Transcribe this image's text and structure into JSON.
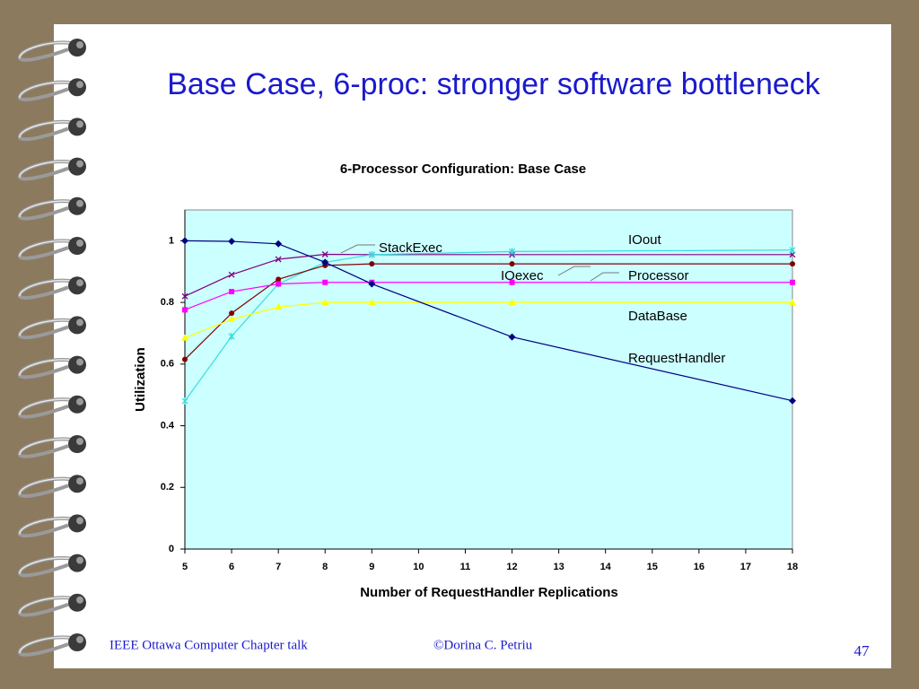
{
  "slide": {
    "title": "Base Case, 6-proc: stronger software bottleneck",
    "footer_left": "IEEE Ottawa Computer Chapter talk",
    "footer_center": "©Dorina C. Petriu",
    "page_number": "47"
  },
  "chart_data": {
    "type": "line",
    "title": "6-Processor Configuration: Base Case",
    "x_label": "Number of RequestHandler Replications",
    "y_label": "Utilization",
    "x": [
      5,
      6,
      7,
      8,
      9,
      12,
      18
    ],
    "xlim": [
      5,
      18
    ],
    "xticks": [
      5,
      6,
      7,
      8,
      9,
      10,
      11,
      12,
      13,
      14,
      15,
      16,
      17,
      18
    ],
    "ylim": [
      0,
      1.1
    ],
    "yticks": [
      0,
      0.2,
      0.4,
      0.6,
      0.8,
      1
    ],
    "series": [
      {
        "name": "StackExec",
        "color": "#800080",
        "marker": "x",
        "values": [
          0.82,
          0.89,
          0.94,
          0.956,
          0.955,
          0.955,
          0.955
        ]
      },
      {
        "name": "IOout",
        "color": "#33dddd",
        "marker": "star",
        "values": [
          0.48,
          0.69,
          0.86,
          0.93,
          0.955,
          0.965,
          0.97
        ]
      },
      {
        "name": "IOexec",
        "color": "#800000",
        "marker": "circle",
        "values": [
          0.615,
          0.765,
          0.875,
          0.92,
          0.925,
          0.925,
          0.925
        ]
      },
      {
        "name": "Processor",
        "color": "#ff00ff",
        "marker": "square",
        "values": [
          0.776,
          0.835,
          0.86,
          0.865,
          0.865,
          0.865,
          0.865
        ]
      },
      {
        "name": "DataBase",
        "color": "#ffff00",
        "marker": "triangle",
        "values": [
          0.685,
          0.745,
          0.785,
          0.8,
          0.8,
          0.8,
          0.8
        ]
      },
      {
        "name": "RequestHandler",
        "color": "#000080",
        "marker": "diamond",
        "values": [
          1.0,
          0.998,
          0.99,
          0.93,
          0.86,
          0.688,
          0.481
        ]
      }
    ]
  }
}
